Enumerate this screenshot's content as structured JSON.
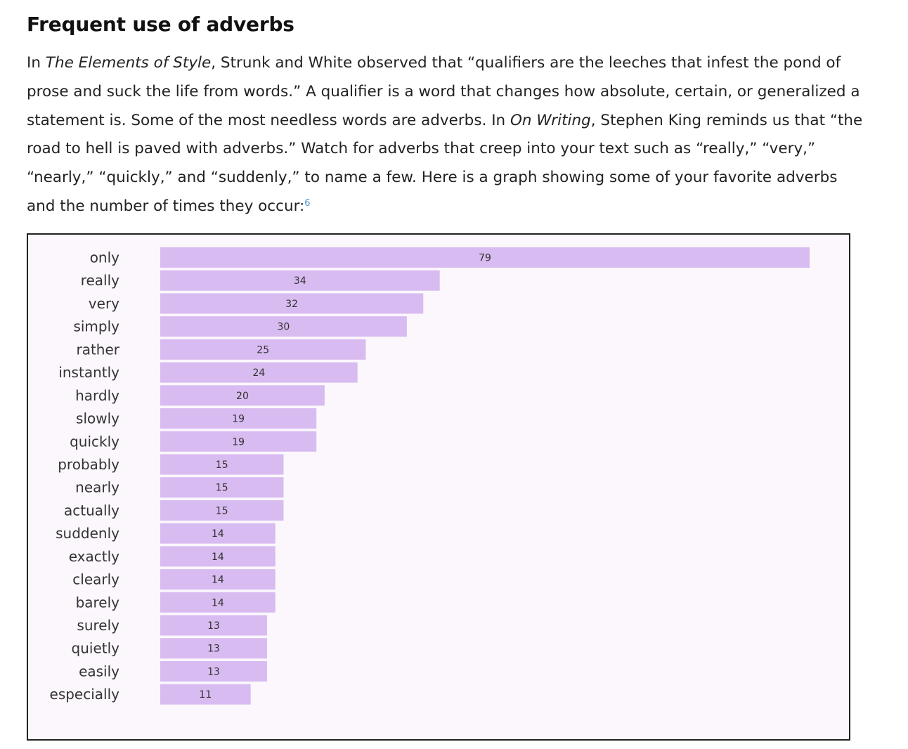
{
  "section": {
    "title": "Frequent use of adverbs",
    "paragraph": {
      "s1": "In ",
      "s2": "The Elements of Style",
      "s3": ", Strunk and White observed that “qualifiers are the leeches that infest the pond of prose and suck the life from words.” A qualifier is a word that changes how absolute, certain, or generalized a statement is. Some of the most needless words are adverbs. In ",
      "s4": "On Writing",
      "s5": ", Stephen King reminds us that “the road to hell is paved with adverbs.” Watch for adverbs that creep into your text such as “really,” “very,” “nearly,” “quickly,” and “suddenly,” to name a few. Here is a graph showing some of your favorite adverbs and the number of times they occur:",
      "footnote": "6"
    }
  },
  "chart_data": {
    "type": "bar",
    "orientation": "horizontal",
    "categories": [
      "only",
      "really",
      "very",
      "simply",
      "rather",
      "instantly",
      "hardly",
      "slowly",
      "quickly",
      "probably",
      "nearly",
      "actually",
      "suddenly",
      "exactly",
      "clearly",
      "barely",
      "surely",
      "quietly",
      "easily",
      "especially"
    ],
    "values": [
      79,
      34,
      32,
      30,
      25,
      24,
      20,
      19,
      19,
      15,
      15,
      15,
      14,
      14,
      14,
      14,
      13,
      13,
      13,
      11
    ],
    "xlim": [
      0,
      79
    ],
    "bar_color": "#d8bbf0",
    "background_color": "#fbf7fc",
    "grid": false,
    "legend": "none",
    "data_labels": "centered on bar"
  }
}
